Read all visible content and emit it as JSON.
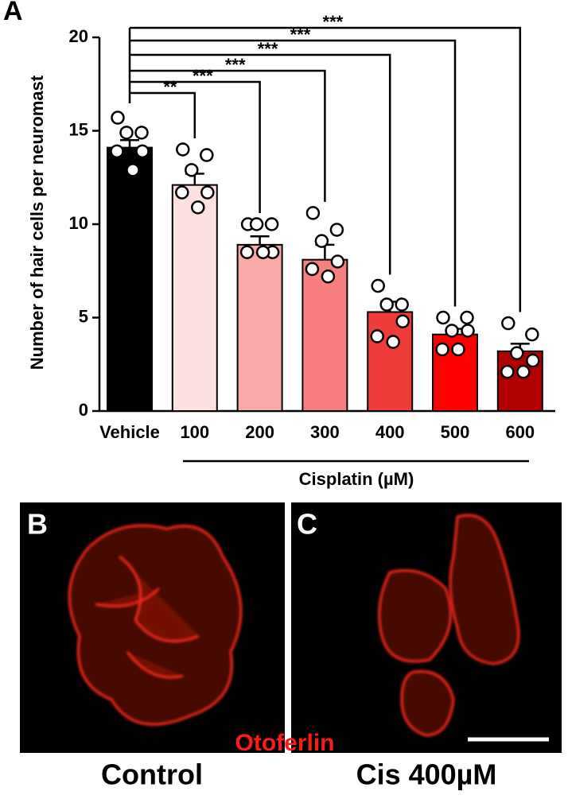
{
  "panel_label": "A",
  "chart_data": {
    "type": "bar",
    "ylabel": "Number of hair cells per neuromast",
    "xlabel": "Cisplatin (µM)",
    "categories": [
      "Vehicle",
      "100",
      "200",
      "300",
      "400",
      "500",
      "600"
    ],
    "values": [
      14.1,
      12.1,
      8.9,
      8.1,
      5.3,
      4.1,
      3.2
    ],
    "errors": [
      0.4,
      0.6,
      0.45,
      0.8,
      0.55,
      0.3,
      0.4
    ],
    "points": [
      [
        15.7,
        14.9,
        14.9,
        13.9,
        13.9,
        12.9
      ],
      [
        14.0,
        13.7,
        12.9,
        11.7,
        11.7,
        10.9
      ],
      [
        10.0,
        10.0,
        10.0,
        8.5,
        8.5,
        8.5
      ],
      [
        10.6,
        9.7,
        9.1,
        8.0,
        7.6,
        7.2
      ],
      [
        6.7,
        5.7,
        5.7,
        4.8,
        4.0,
        3.7
      ],
      [
        5.0,
        5.0,
        4.3,
        4.3,
        3.3,
        3.3
      ],
      [
        4.7,
        4.1,
        3.1,
        2.7,
        2.1,
        2.1
      ]
    ],
    "colors": [
      "#000000",
      "#fde0e0",
      "#f9a9a8",
      "#f77f7f",
      "#f03b3b",
      "#ff0000",
      "#b00000"
    ],
    "significance": [
      null,
      "**",
      "***",
      "***",
      "***",
      "***",
      "***"
    ],
    "ylim": [
      0,
      20
    ],
    "yticks": [
      0,
      5,
      10,
      15,
      20
    ]
  },
  "panels": [
    {
      "label": "B",
      "caption": "Control"
    },
    {
      "label": "C",
      "caption": "Cis 400µM"
    }
  ],
  "stain_label": "Otoferlin"
}
